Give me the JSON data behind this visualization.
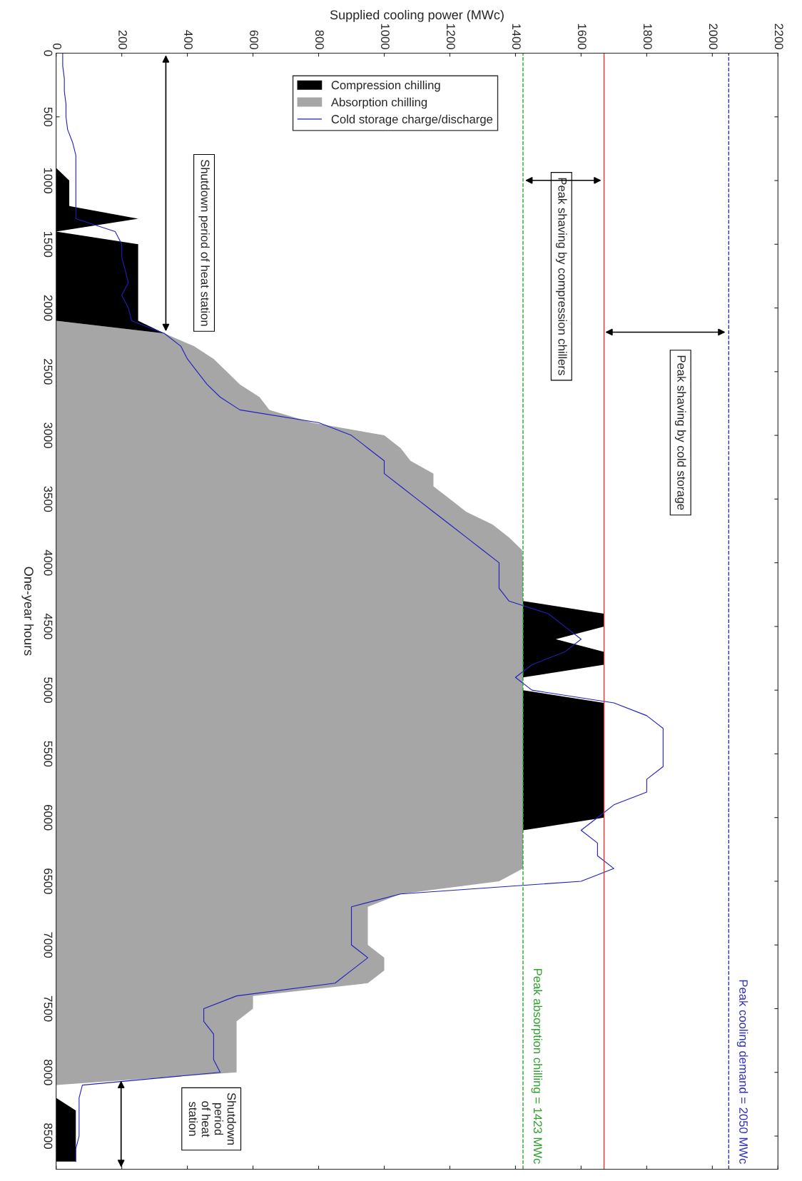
{
  "chart_data": {
    "type": "area",
    "orientation": "horizontal",
    "stacked": true,
    "xlabel": "Supplied cooling power (MWc)",
    "ylabel": "One-year hours",
    "x": [
      0,
      100,
      200,
      300,
      400,
      500,
      600,
      700,
      800,
      900,
      1000,
      1100,
      1200,
      1300,
      1400,
      1500,
      1600,
      1700,
      1800,
      1900,
      2000,
      2100,
      2200,
      2300,
      2400,
      2500,
      2600,
      2700,
      2800,
      2900,
      3000,
      3100,
      3200,
      3300,
      3400,
      3500,
      3600,
      3700,
      3800,
      3900,
      4000,
      4100,
      4200,
      4300,
      4400,
      4500,
      4600,
      4700,
      4800,
      4900,
      5000,
      5100,
      5200,
      5300,
      5400,
      5500,
      5600,
      5700,
      5800,
      5900,
      6000,
      6100,
      6200,
      6300,
      6400,
      6500,
      6600,
      6700,
      6800,
      6900,
      7000,
      7100,
      7200,
      7300,
      7400,
      7500,
      7600,
      7700,
      7800,
      7900,
      8000,
      8100,
      8200,
      8300,
      8400,
      8500,
      8600,
      8700
    ],
    "series": [
      {
        "name": "Absorption chilling",
        "color": "#a6a6a6",
        "values": [
          0,
          0,
          0,
          0,
          0,
          0,
          0,
          0,
          0,
          0,
          0,
          0,
          0,
          0,
          0,
          0,
          0,
          0,
          0,
          0,
          0,
          0,
          330,
          420,
          480,
          520,
          560,
          620,
          650,
          780,
          1000,
          1050,
          1080,
          1150,
          1150,
          1200,
          1250,
          1330,
          1380,
          1420,
          1423,
          1423,
          1423,
          1423,
          1423,
          1423,
          1423,
          1423,
          1423,
          1423,
          1423,
          1423,
          1423,
          1423,
          1423,
          1423,
          1423,
          1423,
          1423,
          1423,
          1423,
          1423,
          1423,
          1423,
          1423,
          1350,
          1050,
          950,
          950,
          950,
          950,
          1000,
          1000,
          950,
          600,
          600,
          550,
          550,
          550,
          550,
          550,
          0,
          0,
          0,
          0,
          0,
          0,
          0
        ]
      },
      {
        "name": "Compression chilling",
        "color": "#000000",
        "values": [
          0,
          0,
          0,
          0,
          0,
          0,
          0,
          0,
          0,
          0,
          40,
          40,
          40,
          250,
          0,
          250,
          250,
          250,
          250,
          250,
          250,
          250,
          0,
          0,
          0,
          0,
          0,
          0,
          0,
          0,
          0,
          0,
          0,
          0,
          0,
          0,
          0,
          0,
          0,
          0,
          0,
          0,
          0,
          0,
          247,
          247,
          100,
          247,
          247,
          0,
          0,
          247,
          247,
          247,
          247,
          247,
          247,
          247,
          247,
          247,
          247,
          0,
          0,
          0,
          0,
          0,
          0,
          0,
          0,
          0,
          0,
          0,
          0,
          0,
          0,
          0,
          0,
          0,
          0,
          0,
          0,
          0,
          0,
          60,
          60,
          60,
          60,
          60
        ]
      },
      {
        "name": "Cold storage charge/discharge",
        "type": "line",
        "color": "#1f1fbf",
        "values": [
          20,
          20,
          25,
          25,
          30,
          30,
          35,
          50,
          60,
          60,
          60,
          60,
          60,
          60,
          180,
          200,
          200,
          210,
          220,
          200,
          220,
          230,
          330,
          380,
          400,
          430,
          460,
          500,
          560,
          800,
          900,
          950,
          1000,
          1000,
          1050,
          1100,
          1150,
          1200,
          1250,
          1300,
          1350,
          1350,
          1350,
          1380,
          1500,
          1550,
          1600,
          1550,
          1450,
          1400,
          1450,
          1700,
          1800,
          1850,
          1850,
          1850,
          1850,
          1800,
          1800,
          1700,
          1650,
          1600,
          1650,
          1650,
          1700,
          1600,
          1050,
          900,
          900,
          900,
          900,
          950,
          900,
          850,
          550,
          450,
          450,
          480,
          480,
          480,
          500,
          80,
          70,
          70,
          70,
          70,
          60,
          60
        ]
      }
    ],
    "xlim": [
      0,
      2200
    ],
    "xticks": [
      0,
      200,
      400,
      600,
      800,
      1000,
      1200,
      1400,
      1600,
      1800,
      2000,
      2200
    ],
    "ylim": [
      8760,
      0
    ],
    "yticks": [
      0,
      500,
      1000,
      1500,
      2000,
      2500,
      3000,
      3500,
      4000,
      4500,
      5000,
      5500,
      6000,
      6500,
      7000,
      7500,
      8000,
      8500
    ],
    "ref_lines": [
      {
        "axis": "x",
        "value": 1423,
        "label": "Peak absorption chilling = 1423 MWc",
        "color": "#2ca02c",
        "line_style": "dashed"
      },
      {
        "axis": "x",
        "value": 1670,
        "label": null,
        "color": "#e03030",
        "line_style": "solid"
      },
      {
        "axis": "x",
        "value": 2050,
        "label": "Peak cooling demand = 2050 MWc",
        "color": "#3030c0",
        "line_style": "dashed"
      }
    ],
    "annotations": [
      "Shutdown period of heat station",
      "Peak shaving by compression chillers",
      "Peak shaving by cold storage",
      "Shutdown period of heat station"
    ],
    "legend": "top",
    "grid": false
  }
}
